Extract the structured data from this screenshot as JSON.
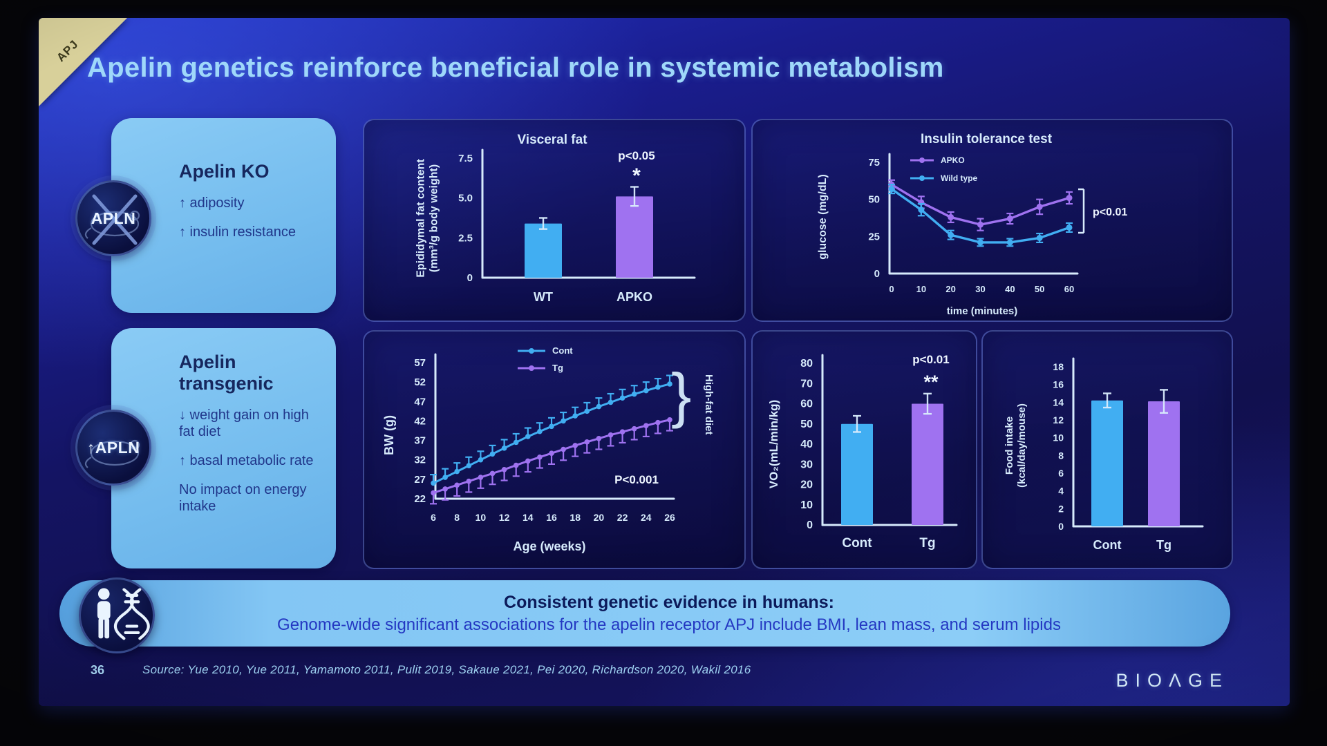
{
  "slide": {
    "corner_tag": "APJ",
    "title": "Apelin genetics reinforce beneficial role in systemic metabolism",
    "page_number": "36",
    "source": "Source: Yue 2010, Yue 2011, Yamamoto 2011, Pulit 2019, Sakaue 2021, Pei 2020, Richardson 2020, Wakil 2016",
    "logo": "BIOΛGE"
  },
  "cards": [
    {
      "title": "Apelin KO",
      "badge": "APLN",
      "items": [
        "↑ adiposity",
        "↑ insulin resistance"
      ]
    },
    {
      "title": "Apelin transgenic",
      "badge": "↑APLN",
      "items": [
        "↓ weight gain on high fat diet",
        "↑ basal metabolic rate",
        "No impact on energy intake"
      ]
    }
  ],
  "banner": {
    "heading": "Consistent genetic evidence in humans:",
    "body": "Genome-wide significant associations for the apelin receptor APJ include BMI, lean mass, and serum lipids"
  },
  "colors": {
    "series_blue": "#41aef2",
    "series_purple": "#9f72f0",
    "axis": "#d7ebfc",
    "annotation": "#eef6ff",
    "slide_title": "#9fd8fa",
    "card_bg": "#7ec5f3",
    "banner_bg": "#8ccdf7",
    "corner_tag_bg": "#d8d09a"
  },
  "chart_data": [
    {
      "id": "visceral_fat",
      "type": "bar",
      "title": "Visceral fat",
      "ylabel": "Epididymal fat content\n(mm³/g body weight)",
      "categories": [
        "WT",
        "APKO"
      ],
      "values": [
        3.4,
        5.1
      ],
      "errors": [
        0.35,
        0.6
      ],
      "bar_colors": [
        "blue",
        "purple"
      ],
      "yticks": [
        "0",
        "2.5",
        "5.0",
        "7.5"
      ],
      "ylim": [
        0,
        7.5
      ],
      "annotation": "p<0.05",
      "annotation2": "*"
    },
    {
      "id": "itt",
      "type": "line",
      "title": "Insulin tolerance test",
      "ylabel": "glucose (mg/dL)",
      "xlabel": "time (minutes)",
      "x": [
        0,
        10,
        20,
        30,
        40,
        50,
        60
      ],
      "xticks": [
        0,
        10,
        20,
        30,
        40,
        50,
        60
      ],
      "yticks": [
        "0",
        "25",
        "50",
        "75"
      ],
      "ylim": [
        0,
        75
      ],
      "annotation": "p<0.01",
      "legend_position": "top-left-of-plot",
      "series": [
        {
          "name": "APKO",
          "color": "purple",
          "values": [
            60,
            48,
            38,
            33,
            37,
            45,
            51
          ],
          "errors": [
            3,
            4,
            3.5,
            4,
            3.5,
            5,
            4
          ],
          "err_dir": "both"
        },
        {
          "name": "Wild type",
          "color": "blue",
          "values": [
            57,
            43,
            26,
            21,
            21,
            24,
            31
          ],
          "errors": [
            3,
            4,
            3,
            2.5,
            2.5,
            3,
            3
          ],
          "err_dir": "both"
        }
      ]
    },
    {
      "id": "bw",
      "type": "line",
      "ylabel": "BW (g)",
      "xlabel": "Age (weeks)",
      "x": [
        6,
        7,
        8,
        9,
        10,
        11,
        12,
        13,
        14,
        15,
        16,
        17,
        18,
        19,
        20,
        21,
        22,
        23,
        24,
        25,
        26
      ],
      "xticks": [
        6,
        8,
        10,
        12,
        14,
        16,
        18,
        20,
        22,
        24,
        26
      ],
      "yticks": [
        "57",
        "52",
        "47",
        "42",
        "37",
        "32",
        "27",
        "22"
      ],
      "ylim": [
        22,
        57
      ],
      "annotation": "P<0.001",
      "bracket_label": "High-fat diet",
      "legend_position": "top-left-of-plot",
      "series": [
        {
          "name": "Cont",
          "color": "blue",
          "values": [
            26,
            27.5,
            29,
            30.5,
            32,
            33.5,
            35,
            36.5,
            38,
            39.3,
            40.6,
            42,
            43.3,
            44.5,
            45.7,
            46.8,
            47.9,
            48.9,
            49.8,
            50.7,
            51.5
          ],
          "errors": 2.2,
          "err_dir": "up"
        },
        {
          "name": "Tg",
          "color": "purple",
          "values": [
            23.5,
            24.5,
            25.5,
            26.5,
            27.5,
            28.5,
            29.5,
            30.6,
            31.7,
            32.7,
            33.7,
            34.7,
            35.7,
            36.6,
            37.5,
            38.4,
            39.2,
            40,
            40.8,
            41.6,
            42.3
          ],
          "errors": 2.8,
          "err_dir": "down"
        }
      ]
    },
    {
      "id": "vo2",
      "type": "bar",
      "ylabel": "VO₂(mL/min/kg)",
      "categories": [
        "Cont",
        "Tg"
      ],
      "values": [
        50,
        60
      ],
      "errors": [
        4,
        5
      ],
      "bar_colors": [
        "blue",
        "purple"
      ],
      "yticks": [
        "0",
        "10",
        "20",
        "30",
        "40",
        "50",
        "60",
        "70",
        "80"
      ],
      "ylim": [
        0,
        80
      ],
      "annotation": "p<0.01",
      "annotation2": "**"
    },
    {
      "id": "food",
      "type": "bar",
      "ylabel": "Food intake\n(kcal/day/mouse)",
      "categories": [
        "Cont",
        "Tg"
      ],
      "values": [
        14.2,
        14.1
      ],
      "errors": [
        0.8,
        1.3
      ],
      "bar_colors": [
        "blue",
        "purple"
      ],
      "yticks": [
        "0",
        "2",
        "4",
        "6",
        "8",
        "10",
        "12",
        "14",
        "16",
        "18"
      ],
      "ylim": [
        0,
        18
      ]
    }
  ]
}
